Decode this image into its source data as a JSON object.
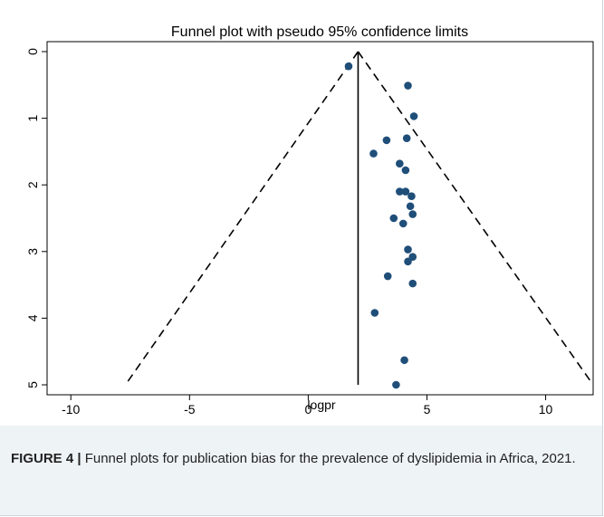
{
  "figure": {
    "caption_label": "FIGURE 4 |",
    "caption_text": " Funnel plots for publication bias for the prevalence of dyslipidemia in Africa, 2021."
  },
  "colors": {
    "point": "#1f4e79",
    "caption_background": "#eef3f6",
    "title_band": "#ffffff"
  },
  "chart_data": {
    "type": "scatter",
    "title": "Funnel plot with pseudo 95% confidence limits",
    "xlabel": "logpr",
    "ylabel": "",
    "xlim": [
      -11,
      12
    ],
    "ylim": [
      5,
      0
    ],
    "y_reversed": true,
    "x_ticks": [
      -10,
      -5,
      0,
      5,
      10
    ],
    "y_ticks": [
      0,
      1,
      2,
      3,
      4,
      5
    ],
    "grid": false,
    "pooled_estimate": 2.1,
    "confidence_limits": {
      "apex": [
        2.1,
        0
      ],
      "lower_end": [
        -7.6,
        4.95
      ],
      "upper_end": [
        11.9,
        4.95
      ]
    },
    "points": [
      {
        "x": 1.7,
        "y": 0.22
      },
      {
        "x": 4.2,
        "y": 0.51
      },
      {
        "x": 4.45,
        "y": 0.97
      },
      {
        "x": 3.3,
        "y": 1.33
      },
      {
        "x": 4.15,
        "y": 1.3
      },
      {
        "x": 2.75,
        "y": 1.53
      },
      {
        "x": 3.85,
        "y": 1.68
      },
      {
        "x": 4.1,
        "y": 1.78
      },
      {
        "x": 3.85,
        "y": 2.1
      },
      {
        "x": 4.1,
        "y": 2.1
      },
      {
        "x": 4.35,
        "y": 2.17
      },
      {
        "x": 4.3,
        "y": 2.32
      },
      {
        "x": 4.4,
        "y": 2.44
      },
      {
        "x": 3.6,
        "y": 2.5
      },
      {
        "x": 4.0,
        "y": 2.58
      },
      {
        "x": 4.2,
        "y": 2.97
      },
      {
        "x": 4.4,
        "y": 3.08
      },
      {
        "x": 4.2,
        "y": 3.15
      },
      {
        "x": 3.35,
        "y": 3.37
      },
      {
        "x": 4.4,
        "y": 3.48
      },
      {
        "x": 2.8,
        "y": 3.92
      },
      {
        "x": 4.05,
        "y": 4.63
      },
      {
        "x": 3.7,
        "y": 5.0
      }
    ]
  }
}
